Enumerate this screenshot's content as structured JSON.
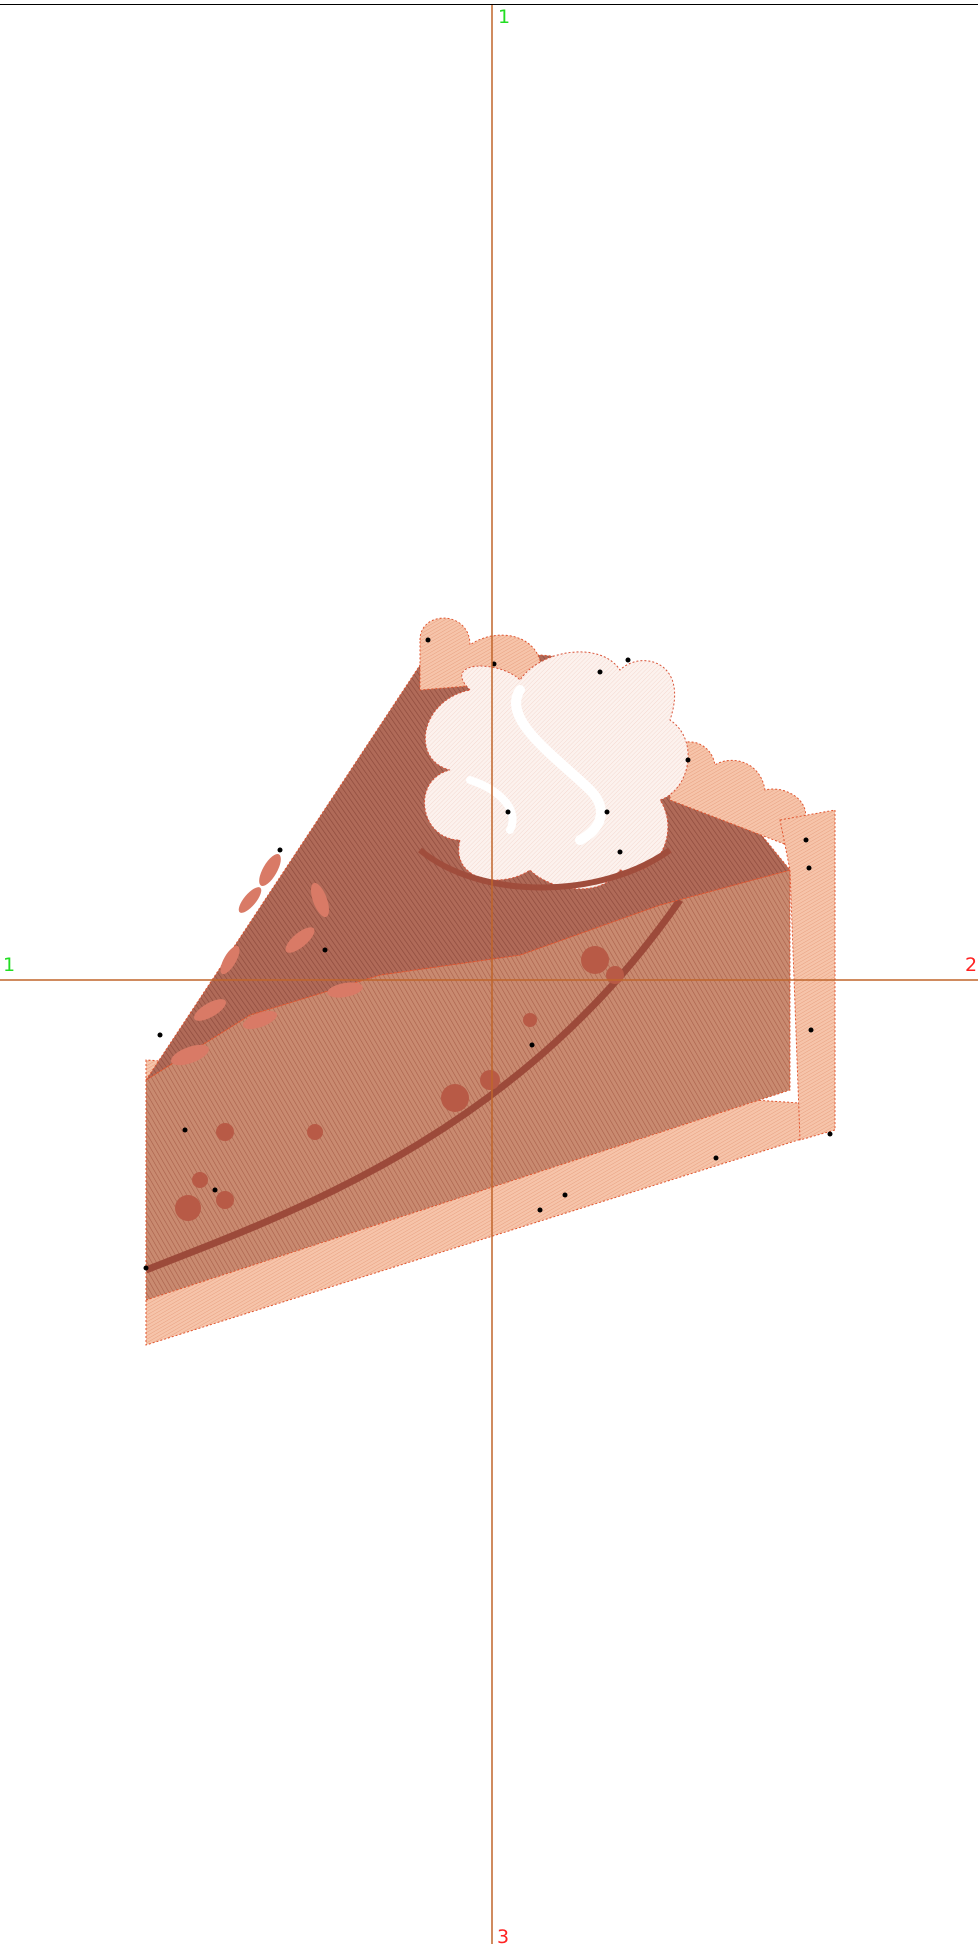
{
  "canvas": {
    "background": "#ffffff",
    "axis_color": "#c0652a",
    "top_rule_color": "#000000"
  },
  "axis_labels": {
    "top": "1",
    "left": "1",
    "right": "2",
    "bottom": "3"
  },
  "label_colors": {
    "top": "#22dd22",
    "left": "#22dd22",
    "right": "#ff2222",
    "bottom": "#ff2222"
  },
  "design": {
    "subject": "pie-slice-with-whipped-cream",
    "colors": {
      "filling_dark": "#a4584a",
      "filling_mid": "#c07a62",
      "filling_light": "#d89880",
      "crust": "#f0b49a",
      "crust_light": "#f6cdb8",
      "stitch_line": "#e0552f",
      "cream": "#fbf0ec",
      "cream_shadow": "#f0c8bc",
      "marker": "#000000"
    }
  }
}
